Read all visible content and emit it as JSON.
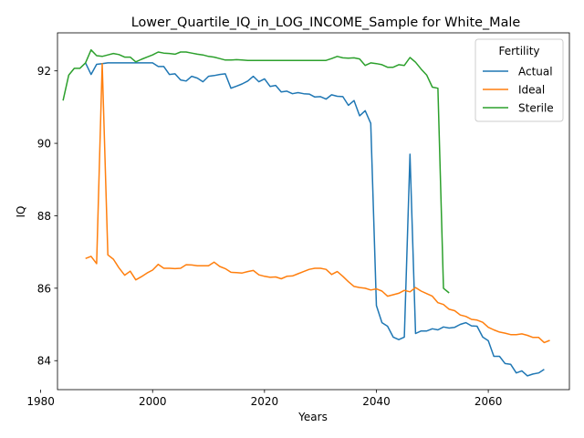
{
  "chart_data": {
    "type": "line",
    "title": "Lower_Quartile_IQ_in_LOG_INCOME_Sample for White_Male",
    "xlabel": "Years",
    "ylabel": "IQ",
    "xlim": [
      1983,
      2074.5
    ],
    "ylim": [
      83.2,
      93.05
    ],
    "xticks": [
      1980,
      2000,
      2020,
      2040,
      2060
    ],
    "yticks": [
      84,
      86,
      88,
      90,
      92
    ],
    "grid": false,
    "legend": {
      "title": "Fertility",
      "placement": "top-right"
    },
    "series": [
      {
        "name": "Actual",
        "color": "#1f77b4",
        "points": [
          [
            1988,
            92.22
          ],
          [
            1989,
            91.9
          ],
          [
            1990,
            92.18
          ],
          [
            1991,
            92.2
          ],
          [
            1992,
            92.22
          ],
          [
            1993,
            92.22
          ],
          [
            1994,
            92.22
          ],
          [
            1995,
            92.22
          ],
          [
            1996,
            92.22
          ],
          [
            1997,
            92.22
          ],
          [
            1998,
            92.22
          ],
          [
            1999,
            92.22
          ],
          [
            2000,
            92.22
          ],
          [
            2001,
            92.12
          ],
          [
            2002,
            92.12
          ],
          [
            2003,
            91.9
          ],
          [
            2004,
            91.92
          ],
          [
            2005,
            91.75
          ],
          [
            2006,
            91.72
          ],
          [
            2007,
            91.85
          ],
          [
            2008,
            91.8
          ],
          [
            2009,
            91.7
          ],
          [
            2010,
            91.85
          ],
          [
            2011,
            91.87
          ],
          [
            2012,
            91.9
          ],
          [
            2013,
            91.92
          ],
          [
            2014,
            91.52
          ],
          [
            2015,
            91.58
          ],
          [
            2016,
            91.64
          ],
          [
            2017,
            91.72
          ],
          [
            2018,
            91.85
          ],
          [
            2019,
            91.7
          ],
          [
            2020,
            91.78
          ],
          [
            2021,
            91.57
          ],
          [
            2022,
            91.6
          ],
          [
            2023,
            91.42
          ],
          [
            2024,
            91.44
          ],
          [
            2025,
            91.37
          ],
          [
            2026,
            91.4
          ],
          [
            2027,
            91.37
          ],
          [
            2028,
            91.36
          ],
          [
            2029,
            91.28
          ],
          [
            2030,
            91.29
          ],
          [
            2031,
            91.22
          ],
          [
            2032,
            91.34
          ],
          [
            2033,
            91.3
          ],
          [
            2034,
            91.29
          ],
          [
            2035,
            91.05
          ],
          [
            2036,
            91.18
          ],
          [
            2037,
            90.76
          ],
          [
            2038,
            90.9
          ],
          [
            2039,
            90.55
          ],
          [
            2040,
            85.52
          ],
          [
            2041,
            85.05
          ],
          [
            2042,
            84.95
          ],
          [
            2043,
            84.65
          ],
          [
            2044,
            84.58
          ],
          [
            2045,
            84.65
          ],
          [
            2046,
            89.7
          ],
          [
            2047,
            84.75
          ],
          [
            2048,
            84.82
          ],
          [
            2049,
            84.82
          ],
          [
            2050,
            84.88
          ],
          [
            2051,
            84.85
          ],
          [
            2052,
            84.93
          ],
          [
            2053,
            84.9
          ],
          [
            2054,
            84.92
          ],
          [
            2055,
            85.0
          ],
          [
            2056,
            85.05
          ],
          [
            2057,
            84.96
          ],
          [
            2058,
            84.95
          ],
          [
            2059,
            84.65
          ],
          [
            2060,
            84.55
          ],
          [
            2061,
            84.12
          ],
          [
            2062,
            84.12
          ],
          [
            2063,
            83.92
          ],
          [
            2064,
            83.9
          ],
          [
            2065,
            83.66
          ],
          [
            2066,
            83.72
          ],
          [
            2067,
            83.58
          ],
          [
            2068,
            83.63
          ],
          [
            2069,
            83.66
          ],
          [
            2070,
            83.76
          ]
        ]
      },
      {
        "name": "Ideal",
        "color": "#ff7f0e",
        "points": [
          [
            1988,
            86.82
          ],
          [
            1989,
            86.88
          ],
          [
            1990,
            86.68
          ],
          [
            1991,
            92.2
          ],
          [
            1992,
            86.92
          ],
          [
            1993,
            86.8
          ],
          [
            1994,
            86.56
          ],
          [
            1995,
            86.36
          ],
          [
            1996,
            86.47
          ],
          [
            1997,
            86.23
          ],
          [
            1998,
            86.32
          ],
          [
            1999,
            86.42
          ],
          [
            2000,
            86.5
          ],
          [
            2001,
            86.66
          ],
          [
            2002,
            86.55
          ],
          [
            2003,
            86.55
          ],
          [
            2004,
            86.54
          ],
          [
            2005,
            86.55
          ],
          [
            2006,
            86.65
          ],
          [
            2007,
            86.64
          ],
          [
            2008,
            86.62
          ],
          [
            2009,
            86.62
          ],
          [
            2010,
            86.62
          ],
          [
            2011,
            86.72
          ],
          [
            2012,
            86.6
          ],
          [
            2013,
            86.54
          ],
          [
            2014,
            86.44
          ],
          [
            2015,
            86.43
          ],
          [
            2016,
            86.42
          ],
          [
            2017,
            86.46
          ],
          [
            2018,
            86.49
          ],
          [
            2019,
            86.37
          ],
          [
            2020,
            86.33
          ],
          [
            2021,
            86.3
          ],
          [
            2022,
            86.31
          ],
          [
            2023,
            86.26
          ],
          [
            2024,
            86.33
          ],
          [
            2025,
            86.34
          ],
          [
            2026,
            86.4
          ],
          [
            2027,
            86.46
          ],
          [
            2028,
            86.52
          ],
          [
            2029,
            86.55
          ],
          [
            2030,
            86.55
          ],
          [
            2031,
            86.52
          ],
          [
            2032,
            86.38
          ],
          [
            2033,
            86.46
          ],
          [
            2034,
            86.33
          ],
          [
            2035,
            86.18
          ],
          [
            2036,
            86.05
          ],
          [
            2037,
            86.02
          ],
          [
            2038,
            86.0
          ],
          [
            2039,
            85.95
          ],
          [
            2040,
            85.98
          ],
          [
            2041,
            85.92
          ],
          [
            2042,
            85.78
          ],
          [
            2043,
            85.82
          ],
          [
            2044,
            85.86
          ],
          [
            2045,
            85.94
          ],
          [
            2046,
            85.9
          ],
          [
            2047,
            86.02
          ],
          [
            2048,
            85.92
          ],
          [
            2049,
            85.85
          ],
          [
            2050,
            85.78
          ],
          [
            2051,
            85.6
          ],
          [
            2052,
            85.55
          ],
          [
            2053,
            85.42
          ],
          [
            2054,
            85.38
          ],
          [
            2055,
            85.26
          ],
          [
            2056,
            85.22
          ],
          [
            2057,
            85.14
          ],
          [
            2058,
            85.12
          ],
          [
            2059,
            85.06
          ],
          [
            2060,
            84.92
          ],
          [
            2061,
            84.85
          ],
          [
            2062,
            84.79
          ],
          [
            2063,
            84.76
          ],
          [
            2064,
            84.72
          ],
          [
            2065,
            84.72
          ],
          [
            2066,
            84.74
          ],
          [
            2067,
            84.7
          ],
          [
            2068,
            84.64
          ],
          [
            2069,
            84.64
          ],
          [
            2070,
            84.5
          ],
          [
            2071,
            84.56
          ]
        ]
      },
      {
        "name": "Sterile",
        "color": "#2ca02c",
        "points": [
          [
            1984,
            91.18
          ],
          [
            1985,
            91.88
          ],
          [
            1986,
            92.07
          ],
          [
            1987,
            92.07
          ],
          [
            1988,
            92.22
          ],
          [
            1989,
            92.58
          ],
          [
            1990,
            92.42
          ],
          [
            1991,
            92.4
          ],
          [
            1992,
            92.44
          ],
          [
            1993,
            92.48
          ],
          [
            1994,
            92.45
          ],
          [
            1995,
            92.38
          ],
          [
            1996,
            92.38
          ],
          [
            1997,
            92.25
          ],
          [
            1998,
            92.32
          ],
          [
            1999,
            92.38
          ],
          [
            2000,
            92.44
          ],
          [
            2001,
            92.52
          ],
          [
            2002,
            92.49
          ],
          [
            2003,
            92.48
          ],
          [
            2004,
            92.46
          ],
          [
            2005,
            92.52
          ],
          [
            2006,
            92.52
          ],
          [
            2007,
            92.49
          ],
          [
            2008,
            92.46
          ],
          [
            2009,
            92.44
          ],
          [
            2010,
            92.4
          ],
          [
            2011,
            92.38
          ],
          [
            2012,
            92.34
          ],
          [
            2013,
            92.3
          ],
          [
            2014,
            92.3
          ],
          [
            2015,
            92.31
          ],
          [
            2016,
            92.3
          ],
          [
            2017,
            92.29
          ],
          [
            2018,
            92.29
          ],
          [
            2019,
            92.29
          ],
          [
            2020,
            92.29
          ],
          [
            2021,
            92.29
          ],
          [
            2022,
            92.29
          ],
          [
            2023,
            92.29
          ],
          [
            2024,
            92.29
          ],
          [
            2025,
            92.29
          ],
          [
            2026,
            92.29
          ],
          [
            2027,
            92.29
          ],
          [
            2028,
            92.29
          ],
          [
            2029,
            92.29
          ],
          [
            2030,
            92.29
          ],
          [
            2031,
            92.29
          ],
          [
            2032,
            92.34
          ],
          [
            2033,
            92.4
          ],
          [
            2034,
            92.36
          ],
          [
            2035,
            92.35
          ],
          [
            2036,
            92.36
          ],
          [
            2037,
            92.33
          ],
          [
            2038,
            92.15
          ],
          [
            2039,
            92.22
          ],
          [
            2040,
            92.2
          ],
          [
            2041,
            92.17
          ],
          [
            2042,
            92.1
          ],
          [
            2043,
            92.1
          ],
          [
            2044,
            92.17
          ],
          [
            2045,
            92.15
          ],
          [
            2046,
            92.37
          ],
          [
            2047,
            92.24
          ],
          [
            2048,
            92.05
          ],
          [
            2049,
            91.88
          ],
          [
            2050,
            91.55
          ],
          [
            2051,
            91.52
          ],
          [
            2052,
            86.0
          ],
          [
            2053,
            85.87
          ]
        ]
      }
    ]
  }
}
